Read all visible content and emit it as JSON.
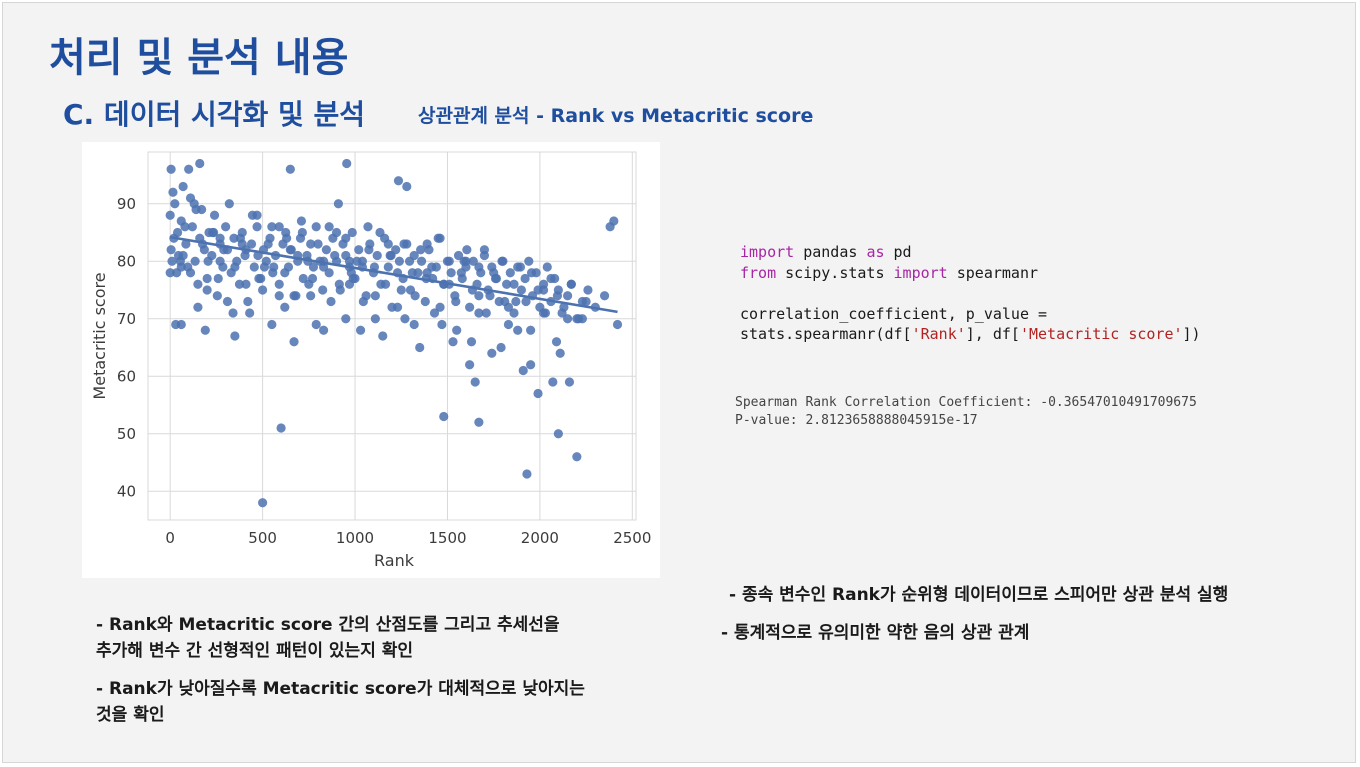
{
  "slide": {
    "title": "처리 및 분석 내용",
    "section_title": "C. 데이터 시각화 및 분석",
    "section_subtitle": "상관관계 분석 - Rank vs Metacritic score"
  },
  "code": {
    "line1": {
      "kw1": "import",
      "t1": " pandas ",
      "kw2": "as",
      "t2": " pd"
    },
    "line2": {
      "kw1": "from",
      "t1": " scipy.stats ",
      "kw2": "import",
      "t2": " spearmanr"
    },
    "line3": "correlation_coefficient, p_value =",
    "line4": {
      "t1": "stats.spearmanr(df[",
      "s1": "'Rank'",
      "t2": "], df[",
      "s2": "'Metacritic score'",
      "t3": "])"
    }
  },
  "output": {
    "line1": "Spearman Rank Correlation Coefficient: -0.36547010491709675",
    "line2": "P-value: 2.8123658888045915e-17"
  },
  "bullets": {
    "left1_line1": "- Rank와 Metacritic score 간의 산점도를 그리고 추세선을",
    "left1_line2": "추가해 변수 간 선형적인 패턴이 있는지 확인",
    "left2_line1": "- Rank가 낮아질수록 Metacritic score가 대체적으로 낮아지는",
    "left2_line2": "것을 확인",
    "right1": "- 종속 변수인 Rank가 순위형 데이터이므로 스피어만 상관 분석 실행",
    "right2": "- 통계적으로 유의미한 약한 음의 상관 관계"
  },
  "chart_data": {
    "type": "scatter",
    "xlabel": "Rank",
    "ylabel": "Metacritic score",
    "xlim": [
      -120,
      2520
    ],
    "ylim": [
      35,
      99
    ],
    "xticks": [
      0,
      500,
      1000,
      1500,
      2000,
      2500
    ],
    "yticks": [
      40,
      50,
      60,
      70,
      80,
      90
    ],
    "grid": true,
    "colors": {
      "points": "#4c72b0",
      "trend": "#4c72b0",
      "grid": "#d9d9d9",
      "text": "#3c3c3c"
    },
    "trendline": {
      "x": [
        0,
        2420
      ],
      "y": [
        84.2,
        71.2
      ]
    },
    "x": [
      0,
      5,
      10,
      20,
      25,
      35,
      40,
      55,
      60,
      70,
      85,
      95,
      110,
      120,
      135,
      150,
      160,
      170,
      185,
      200,
      210,
      225,
      240,
      255,
      270,
      285,
      300,
      310,
      330,
      345,
      360,
      375,
      390,
      405,
      420,
      440,
      455,
      470,
      490,
      505,
      520,
      540,
      555,
      570,
      590,
      610,
      625,
      640,
      655,
      670,
      690,
      705,
      720,
      740,
      760,
      775,
      790,
      810,
      825,
      845,
      860,
      880,
      900,
      915,
      935,
      950,
      970,
      985,
      1000,
      1020,
      1040,
      1060,
      1080,
      1100,
      1120,
      1140,
      1160,
      1180,
      1200,
      1220,
      1240,
      1260,
      1280,
      1300,
      1320,
      1340,
      1360,
      1380,
      1400,
      1420,
      1440,
      1460,
      1480,
      1500,
      1520,
      1540,
      1560,
      1580,
      1600,
      1620,
      1640,
      1660,
      1680,
      1700,
      1720,
      1740,
      1760,
      1780,
      1800,
      1820,
      1840,
      1860,
      1880,
      1900,
      1920,
      1940,
      1960,
      1980,
      2000,
      2020,
      2040,
      2060,
      2080,
      2100,
      2120,
      2150,
      2170,
      2200,
      2230,
      2260,
      2300,
      2350,
      2380,
      2420,
      15,
      45,
      80,
      110,
      140,
      175,
      205,
      235,
      260,
      290,
      320,
      350,
      380,
      410,
      445,
      475,
      500,
      530,
      560,
      590,
      620,
      650,
      680,
      715,
      745,
      770,
      800,
      830,
      860,
      890,
      920,
      950,
      980,
      1010,
      1045,
      1075,
      1105,
      1135,
      1165,
      1195,
      1230,
      1265,
      1295,
      1325,
      1355,
      1385,
      1415,
      1450,
      1480,
      1510,
      1545,
      1575,
      1605,
      1635,
      1670,
      1700,
      1730,
      1765,
      1795,
      1830,
      1860,
      1895,
      1925,
      1955,
      1990,
      2020,
      2060,
      2095,
      2130,
      2170,
      2210,
      2250,
      30,
      70,
      100,
      150,
      190,
      230,
      270,
      310,
      350,
      390,
      430,
      470,
      510,
      550,
      590,
      630,
      670,
      710,
      750,
      790,
      830,
      870,
      910,
      950,
      990,
      1030,
      1070,
      1110,
      1150,
      1190,
      1230,
      1270,
      1310,
      1350,
      1390,
      1430,
      1470,
      1510,
      1550,
      1590,
      1630,
      1670,
      1710,
      1750,
      1790,
      1830,
      1870,
      1910,
      1950,
      1990,
      2030,
      2070,
      2110,
      2150,
      5,
      60,
      130,
      200,
      270,
      340,
      410,
      480,
      550,
      620,
      690,
      760,
      830,
      900,
      970,
      1040,
      1110,
      1180,
      1250,
      1320,
      1390,
      1460,
      1530,
      1600,
      1670,
      1740,
      1810,
      1880,
      1950,
      2020,
      2090,
      2160,
      2230,
      160,
      500,
      600,
      650,
      955,
      1235,
      1280,
      1480,
      1670,
      1930,
      2100,
      2200,
      0,
      60,
      2400,
      970,
      1620,
      1650
    ],
    "y": [
      88,
      82,
      80,
      84,
      90,
      78,
      85,
      80,
      87,
      81,
      83,
      79,
      91,
      86,
      80,
      76,
      84,
      89,
      82,
      77,
      85,
      81,
      88,
      74,
      83,
      79,
      86,
      82,
      78,
      84,
      80,
      76,
      85,
      81,
      73,
      83,
      79,
      86,
      77,
      82,
      80,
      84,
      78,
      81,
      76,
      83,
      85,
      79,
      82,
      74,
      80,
      84,
      77,
      81,
      83,
      79,
      86,
      80,
      75,
      82,
      78,
      84,
      80,
      76,
      83,
      81,
      79,
      85,
      77,
      82,
      80,
      74,
      83,
      78,
      81,
      76,
      84,
      79,
      72,
      82,
      80,
      77,
      83,
      75,
      81,
      78,
      80,
      73,
      82,
      77,
      79,
      84,
      76,
      80,
      78,
      74,
      81,
      77,
      79,
      72,
      80,
      76,
      78,
      82,
      75,
      79,
      77,
      73,
      80,
      76,
      78,
      71,
      79,
      75,
      77,
      80,
      74,
      78,
      72,
      76,
      79,
      73,
      77,
      75,
      71,
      74,
      76,
      70,
      73,
      75,
      72,
      74,
      86,
      69,
      92,
      81,
      86,
      78,
      89,
      83,
      80,
      85,
      77,
      82,
      90,
      79,
      84,
      76,
      88,
      81,
      75,
      83,
      79,
      86,
      78,
      82,
      74,
      85,
      80,
      77,
      83,
      79,
      86,
      81,
      75,
      84,
      78,
      80,
      73,
      82,
      79,
      85,
      76,
      81,
      78,
      83,
      80,
      74,
      82,
      77,
      79,
      84,
      76,
      80,
      73,
      78,
      82,
      75,
      79,
      81,
      74,
      77,
      80,
      72,
      76,
      79,
      73,
      78,
      75,
      71,
      77,
      74,
      72,
      76,
      70,
      73,
      69,
      93,
      96,
      72,
      68,
      85,
      80,
      73,
      67,
      83,
      71,
      88,
      79,
      69,
      74,
      84,
      66,
      87,
      76,
      69,
      80,
      73,
      90,
      70,
      77,
      68,
      86,
      74,
      67,
      81,
      72,
      70,
      78,
      65,
      83,
      71,
      69,
      76,
      68,
      80,
      66,
      74,
      71,
      78,
      65,
      69,
      73,
      61,
      68,
      57,
      71,
      59,
      64,
      70,
      96,
      79,
      90,
      75,
      84,
      71,
      82,
      77,
      86,
      72,
      81,
      74,
      68,
      85,
      76,
      79,
      70,
      83,
      75,
      69,
      78,
      72,
      66,
      80,
      71,
      64,
      73,
      68,
      62,
      75,
      66,
      59,
      70,
      97,
      38,
      51,
      96,
      97,
      94,
      93,
      53,
      52,
      43,
      50,
      46,
      78,
      69,
      87,
      80,
      62,
      59
    ]
  }
}
